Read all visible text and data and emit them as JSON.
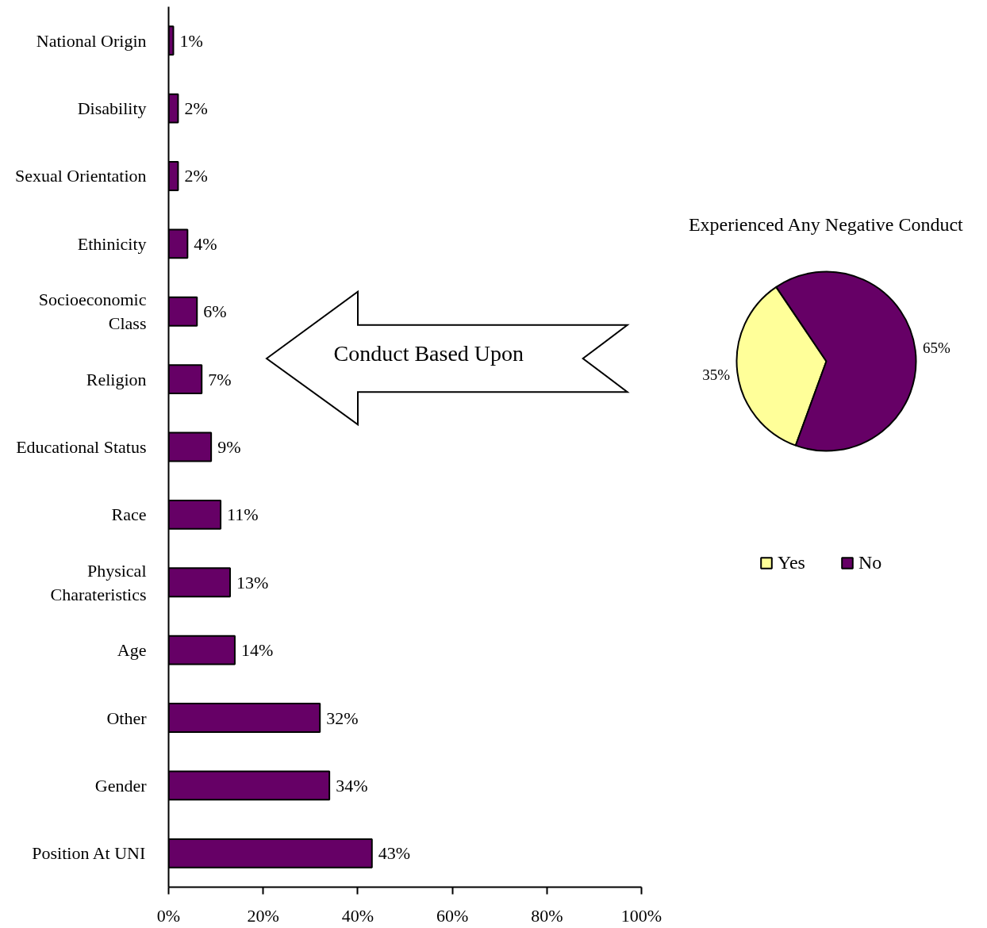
{
  "chart_data": [
    {
      "type": "bar",
      "orientation": "horizontal",
      "categories": [
        "National Origin",
        "Disability",
        "Sexual Orientation",
        "Ethinicity",
        "Socioeconomic Class",
        "Religion",
        "Educational Status",
        "Race",
        "Physical Charateristics",
        "Age",
        "Other",
        "Gender",
        "Position At UNI"
      ],
      "values": [
        1,
        2,
        2,
        4,
        6,
        7,
        9,
        11,
        13,
        14,
        32,
        34,
        43
      ],
      "value_labels": [
        "1%",
        "2%",
        "2%",
        "4%",
        "6%",
        "7%",
        "9%",
        "11%",
        "13%",
        "14%",
        "32%",
        "34%",
        "43%"
      ],
      "color": "#660066",
      "xlim": [
        0,
        100
      ],
      "xticks": [
        {
          "value": 0,
          "label": "0%"
        },
        {
          "value": 20,
          "label": "20%"
        },
        {
          "value": 40,
          "label": "40%"
        },
        {
          "value": 60,
          "label": "60%"
        },
        {
          "value": 80,
          "label": "80%"
        },
        {
          "value": 100,
          "label": "100%"
        }
      ],
      "annotations": [
        "Conduct Based Upon"
      ]
    },
    {
      "type": "pie",
      "title": "Experienced Any Negative Conduct",
      "categories": [
        "Yes",
        "No"
      ],
      "values": [
        35,
        65
      ],
      "colors": [
        "#ffff99",
        "#660066"
      ],
      "value_labels": [
        "35%",
        "65%"
      ],
      "legend": "bottom"
    }
  ]
}
